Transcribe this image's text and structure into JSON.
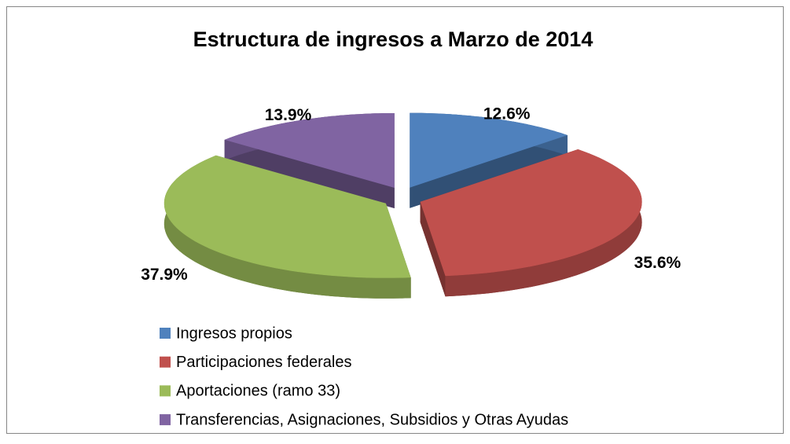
{
  "chart_data": {
    "type": "pie",
    "title": "Estructura de ingresos a Marzo de 2014",
    "categories": [
      "Ingresos propios",
      "Participaciones federales",
      "Aportaciones (ramo 33)",
      "Transferencias, Asignaciones, Subsidios y Otras Ayudas"
    ],
    "values": [
      12.6,
      35.6,
      37.9,
      13.9
    ],
    "value_labels": [
      "12.6%",
      "35.6%",
      "37.9%",
      "13.9%"
    ],
    "colors": [
      "#4f81bd",
      "#c0504d",
      "#9bbb59",
      "#8064a2"
    ],
    "legend": "bottom"
  }
}
